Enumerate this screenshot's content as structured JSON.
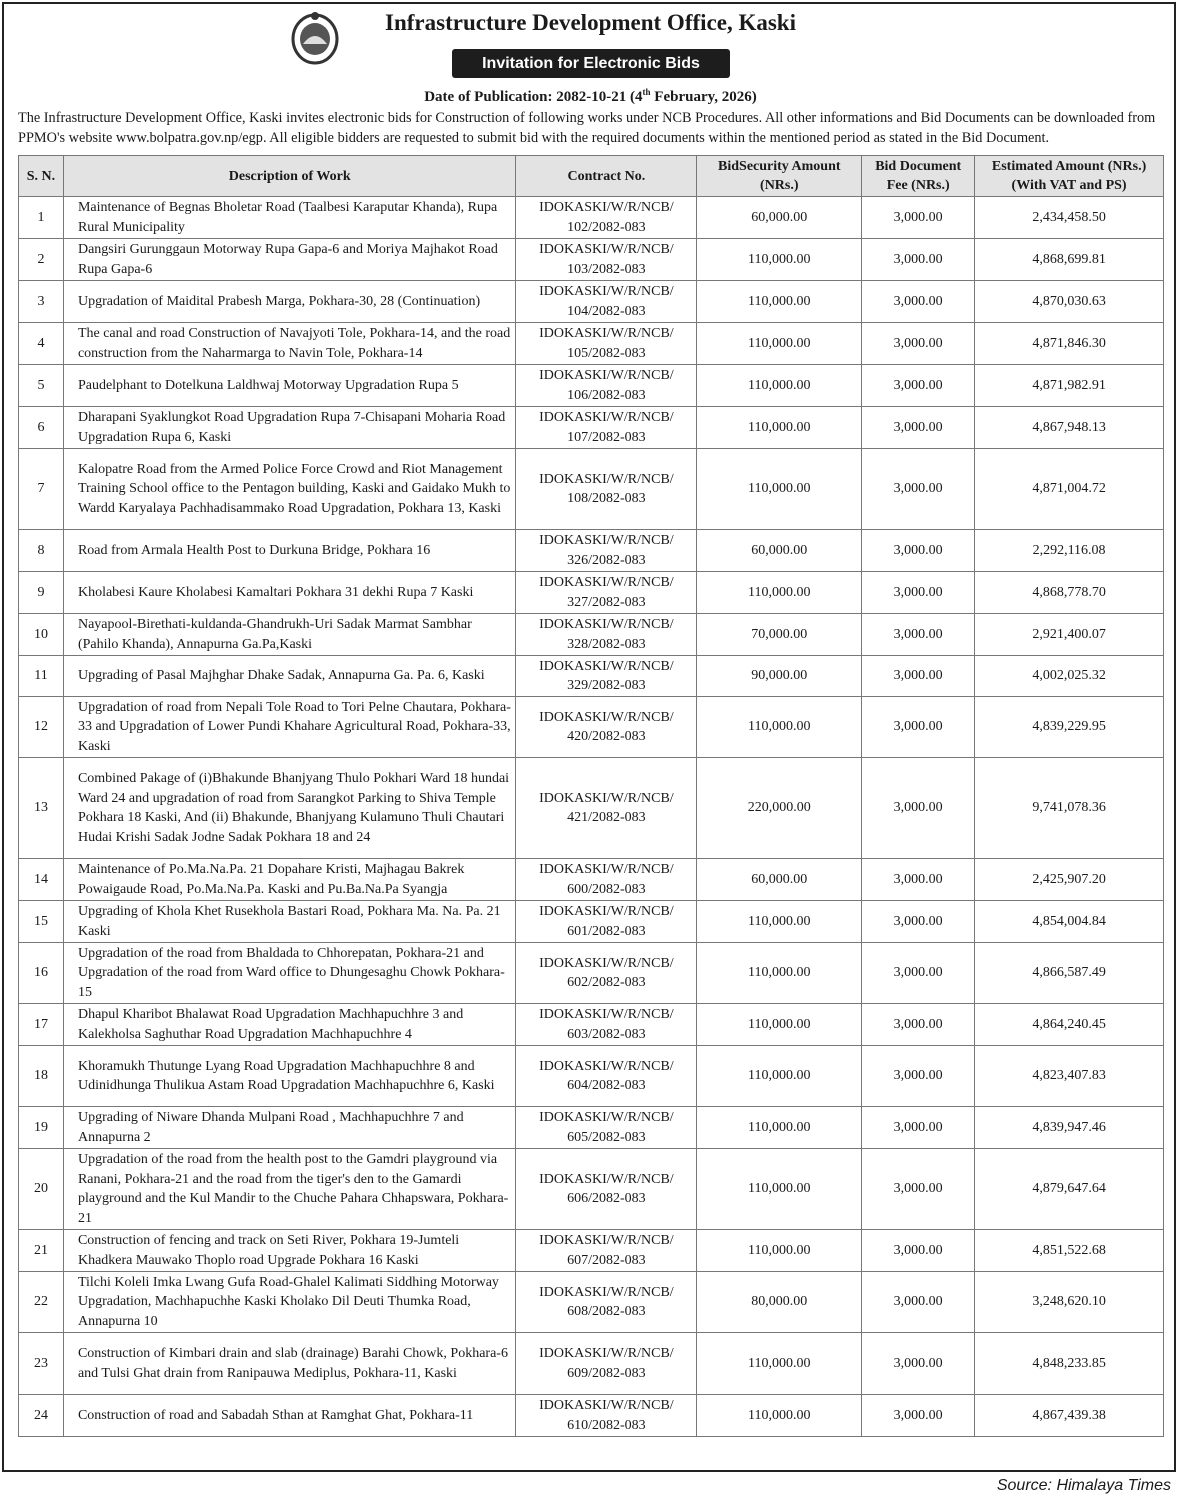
{
  "header": {
    "title": "Infrastructure Development Office, Kaski",
    "badge": "Invitation for Electronic Bids",
    "date_prefix": "Date of Publication: 2082-10-21 (4",
    "date_sup": "th",
    "date_suffix": " February, 2026)",
    "intro": "The Infrastructure Development Office, Kaski invites electronic bids for Construction of following works under NCB Procedures. All other informations and Bid Documents can be downloaded from PPMO's website www.bolpatra.gov.np/egp. All eligible bidders are requested to submit bid with the required documents within the mentioned period as stated in the Bid Document."
  },
  "table": {
    "columns": [
      "S. N.",
      "Description of Work",
      "Contract No.",
      "BidSecurity Amount (NRs.)",
      "Bid Document Fee (NRs.)",
      "Estimated Amount (NRs.) (With VAT and PS)"
    ],
    "rows": [
      {
        "sn": "1",
        "desc": "Maintenance of Begnas Bholetar Road (Taalbesi Karaputar Khanda), Rupa Rural Municipality",
        "contract": "IDOKASKI/W/R/NCB/ 102/2082-083",
        "security": "60,000.00",
        "fee": "3,000.00",
        "estimate": "2,434,458.50"
      },
      {
        "sn": "2",
        "desc": "Dangsiri Gurunggaun Motorway Rupa Gapa-6 and Moriya Majhakot Road Rupa Gapa-6",
        "contract": "IDOKASKI/W/R/NCB/ 103/2082-083",
        "security": "110,000.00",
        "fee": "3,000.00",
        "estimate": "4,868,699.81"
      },
      {
        "sn": "3",
        "desc": "Upgradation of Maidital Prabesh Marga, Pokhara-30, 28 (Continuation)",
        "contract": "IDOKASKI/W/R/NCB/ 104/2082-083",
        "security": "110,000.00",
        "fee": "3,000.00",
        "estimate": "4,870,030.63"
      },
      {
        "sn": "4",
        "desc": "The canal and road Construction of Navajyoti Tole, Pokhara-14, and the road construction from the Naharmarga to Navin Tole, Pokhara-14",
        "contract": "IDOKASKI/W/R/NCB/ 105/2082-083",
        "security": "110,000.00",
        "fee": "3,000.00",
        "estimate": "4,871,846.30"
      },
      {
        "sn": "5",
        "desc": "Paudelphant to Dotelkuna Laldhwaj Motorway Upgradation Rupa 5",
        "contract": "IDOKASKI/W/R/NCB/ 106/2082-083",
        "security": "110,000.00",
        "fee": "3,000.00",
        "estimate": "4,871,982.91"
      },
      {
        "sn": "6",
        "desc": "Dharapani Syaklungkot Road Upgradation Rupa 7-Chisapani Moharia Road Upgradation Rupa 6, Kaski",
        "contract": "IDOKASKI/W/R/NCB/ 107/2082-083",
        "security": "110,000.00",
        "fee": "3,000.00",
        "estimate": "4,867,948.13"
      },
      {
        "sn": "7",
        "desc": "Kalopatre Road from the Armed Police Force Crowd and Riot Management Training School office to the Pentagon building, Kaski and Gaidako Mukh to Wardd Karyalaya Pachhadisammako Road Upgradation, Pokhara 13, Kaski",
        "contract": "IDOKASKI/W/R/NCB/ 108/2082-083",
        "security": "110,000.00",
        "fee": "3,000.00",
        "estimate": "4,871,004.72"
      },
      {
        "sn": "8",
        "desc": "Road from Armala Health Post to Durkuna Bridge, Pokhara 16",
        "contract": "IDOKASKI/W/R/NCB/ 326/2082-083",
        "security": "60,000.00",
        "fee": "3,000.00",
        "estimate": "2,292,116.08"
      },
      {
        "sn": "9",
        "desc": "Kholabesi Kaure Kholabesi Kamaltari Pokhara 31 dekhi Rupa 7 Kaski",
        "contract": "IDOKASKI/W/R/NCB/ 327/2082-083",
        "security": "110,000.00",
        "fee": "3,000.00",
        "estimate": "4,868,778.70"
      },
      {
        "sn": "10",
        "desc": "Nayapool-Birethati-kuldanda-Ghandrukh-Uri Sadak Marmat Sambhar (Pahilo Khanda), Annapurna Ga.Pa,Kaski",
        "contract": "IDOKASKI/W/R/NCB/ 328/2082-083",
        "security": "70,000.00",
        "fee": "3,000.00",
        "estimate": "2,921,400.07"
      },
      {
        "sn": "11",
        "desc": "Upgrading of Pasal Majhghar Dhake Sadak, Annapurna Ga. Pa. 6, Kaski",
        "contract": "IDOKASKI/W/R/NCB/ 329/2082-083",
        "security": "90,000.00",
        "fee": "3,000.00",
        "estimate": "4,002,025.32"
      },
      {
        "sn": "12",
        "desc": "Upgradation of road from Nepali Tole Road to Tori Pelne Chautara, Pokhara-33 and Upgradation of Lower Pundi Khahare Agricultural Road, Pokhara-33, Kaski",
        "contract": "IDOKASKI/W/R/NCB/ 420/2082-083",
        "security": "110,000.00",
        "fee": "3,000.00",
        "estimate": "4,839,229.95"
      },
      {
        "sn": "13",
        "desc": "Combined Pakage of (i)Bhakunde Bhanjyang Thulo Pokhari Ward 18 hundai Ward 24 and upgradation of road from Sarangkot Parking to Shiva Temple Pokhara 18 Kaski, And (ii) Bhakunde, Bhanjyang Kulamuno Thuli Chautari Hudai Krishi Sadak Jodne Sadak Pokhara 18 and 24",
        "contract": "IDOKASKI/W/R/NCB/ 421/2082-083",
        "security": "220,000.00",
        "fee": "3,000.00",
        "estimate": "9,741,078.36"
      },
      {
        "sn": "14",
        "desc": "Maintenance of Po.Ma.Na.Pa. 21 Dopahare Kristi, Majhagau Bakrek Powaigaude Road, Po.Ma.Na.Pa. Kaski and Pu.Ba.Na.Pa Syangja",
        "contract": "IDOKASKI/W/R/NCB/ 600/2082-083",
        "security": "60,000.00",
        "fee": "3,000.00",
        "estimate": "2,425,907.20"
      },
      {
        "sn": "15",
        "desc": "Upgrading of Khola Khet Rusekhola Bastari Road, Pokhara Ma. Na. Pa. 21 Kaski",
        "contract": "IDOKASKI/W/R/NCB/ 601/2082-083",
        "security": "110,000.00",
        "fee": "3,000.00",
        "estimate": "4,854,004.84"
      },
      {
        "sn": "16",
        "desc": "Upgradation of the road from Bhaldada to Chhorepatan, Pokhara-21 and Upgradation of the road from Ward office to Dhungesaghu Chowk Pokhara-15",
        "contract": "IDOKASKI/W/R/NCB/ 602/2082-083",
        "security": "110,000.00",
        "fee": "3,000.00",
        "estimate": "4,866,587.49"
      },
      {
        "sn": "17",
        "desc": "Dhapul Kharibot Bhalawat Road Upgradation Machhapuchhre 3 and Kalekholsa Saghuthar Road Upgradation Machhapuchhre 4",
        "contract": "IDOKASKI/W/R/NCB/ 603/2082-083",
        "security": "110,000.00",
        "fee": "3,000.00",
        "estimate": "4,864,240.45"
      },
      {
        "sn": "18",
        "desc": "Khoramukh Thutunge Lyang Road Upgradation Machhapuchhre 8 and Udinidhunga Thulikua Astam Road Upgradation Machhapuchhre 6, Kaski",
        "contract": "IDOKASKI/W/R/NCB/ 604/2082-083",
        "security": "110,000.00",
        "fee": "3,000.00",
        "estimate": "4,823,407.83"
      },
      {
        "sn": "19",
        "desc": "Upgrading of Niware Dhanda Mulpani Road , Machhapuchhre 7 and Annapurna 2",
        "contract": "IDOKASKI/W/R/NCB/ 605/2082-083",
        "security": "110,000.00",
        "fee": "3,000.00",
        "estimate": "4,839,947.46"
      },
      {
        "sn": "20",
        "desc": "Upgradation of the road from the health post to the Gamdri playground via Ranani, Pokhara-21 and the road from the tiger's den to the Gamardi playground and the Kul Mandir to the Chuche Pahara Chhapswara, Pokhara-21",
        "contract": "IDOKASKI/W/R/NCB/ 606/2082-083",
        "security": "110,000.00",
        "fee": "3,000.00",
        "estimate": "4,879,647.64"
      },
      {
        "sn": "21",
        "desc": "Construction of fencing and track on Seti River, Pokhara 19-Jumteli Khadkera Mauwako Thoplo road Upgrade Pokhara 16 Kaski",
        "contract": "IDOKASKI/W/R/NCB/ 607/2082-083",
        "security": "110,000.00",
        "fee": "3,000.00",
        "estimate": "4,851,522.68"
      },
      {
        "sn": "22",
        "desc": "Tilchi Koleli Imka Lwang Gufa Road-Ghalel Kalimati Siddhing Motorway Upgradation, Machhapuchhe Kaski Kholako Dil Deuti Thumka Road, Annapurna 10",
        "contract": "IDOKASKI/W/R/NCB/ 608/2082-083",
        "security": "80,000.00",
        "fee": "3,000.00",
        "estimate": "3,248,620.10"
      },
      {
        "sn": "23",
        "desc": "Construction of  Kimbari drain and slab (drainage) Barahi Chowk, Pokhara-6 and Tulsi Ghat drain from Ranipauwa Mediplus, Pokhara-11, Kaski",
        "contract": "IDOKASKI/W/R/NCB/ 609/2082-083",
        "security": "110,000.00",
        "fee": "3,000.00",
        "estimate": "4,848,233.85"
      },
      {
        "sn": "24",
        "desc": "Construction of road and Sabadah Sthan at Ramghat Ghat, Pokhara-11",
        "contract": "IDOKASKI/W/R/NCB/ 610/2082-083",
        "security": "110,000.00",
        "fee": "3,000.00",
        "estimate": "4,867,439.38"
      }
    ]
  },
  "footer": {
    "source": "Source: Himalaya Times"
  },
  "colors": {
    "badge_bg": "#1d1d1d",
    "header_bg": "#e3e3e3"
  }
}
